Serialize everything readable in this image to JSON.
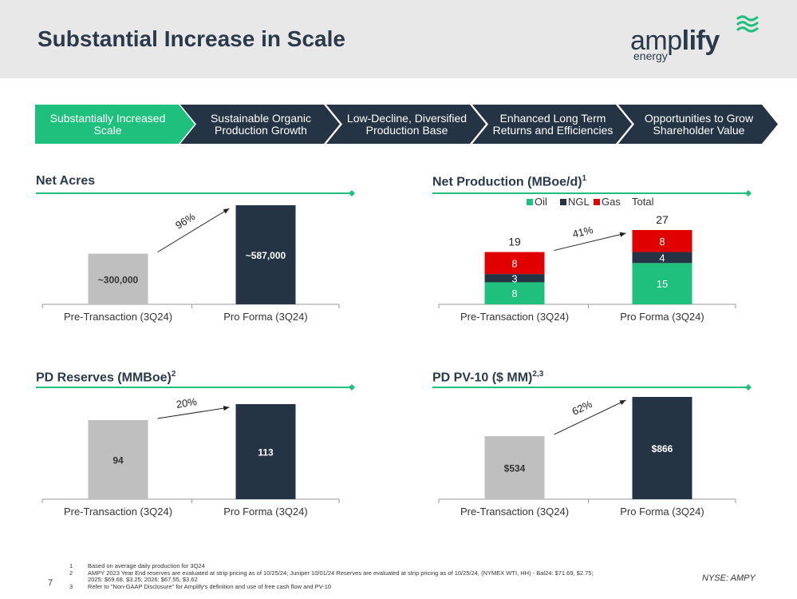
{
  "page": {
    "title": "Substantial Increase in Scale",
    "page_number": "7",
    "ticker": "NYSE: AMPY"
  },
  "logo": {
    "text_thin": "amp",
    "text_bold": "lify",
    "sub": "energy"
  },
  "colors": {
    "green": "#1fbf7e",
    "navy": "#243444",
    "gray": "#bfbfbf",
    "red": "#e00000",
    "line_green": "#1fbf7e"
  },
  "chevrons": [
    {
      "label": "Substantially Increased Scale",
      "active": true
    },
    {
      "label": "Sustainable Organic Production Growth",
      "active": false
    },
    {
      "label": "Low-Decline, Diversified Production Base",
      "active": false
    },
    {
      "label": "Enhanced Long Term Returns and Efficiencies",
      "active": false
    },
    {
      "label": "Opportunities to Grow Shareholder Value",
      "active": false
    }
  ],
  "sections": {
    "net_acres": {
      "title": "Net Acres",
      "sup": ""
    },
    "net_production": {
      "title": "Net Production (MBoe/d)",
      "sup": "1"
    },
    "pd_reserves": {
      "title": "PD Reserves (MMBoe)",
      "sup": "2"
    },
    "pd_pv10": {
      "title": "PD PV-10 ($ MM)",
      "sup": "2,3"
    }
  },
  "chart_data": [
    {
      "id": "net_acres",
      "type": "bar",
      "categories": [
        "Pre-Transaction (3Q24)",
        "Pro Forma (3Q24)"
      ],
      "values": [
        300000,
        587000
      ],
      "data_labels": [
        "~300,000",
        "~587,000"
      ],
      "growth_label": "96%",
      "title": "Net Acres",
      "xlabel": "",
      "ylabel": "",
      "ylim": [
        0,
        600000
      ]
    },
    {
      "id": "net_production",
      "type": "bar",
      "stacked": true,
      "categories": [
        "Pre-Transaction (3Q24)",
        "Pro Forma (3Q24)"
      ],
      "series": [
        {
          "name": "Oil",
          "values": [
            8,
            15
          ]
        },
        {
          "name": "NGL",
          "values": [
            3,
            4
          ]
        },
        {
          "name": "Gas",
          "values": [
            8,
            8
          ]
        }
      ],
      "totals": [
        19,
        27
      ],
      "total_label": "Total",
      "growth_label": "41%",
      "title": "Net Production (MBoe/d)",
      "xlabel": "",
      "ylabel": "",
      "ylim": [
        0,
        40
      ],
      "legend": "top"
    },
    {
      "id": "pd_reserves",
      "type": "bar",
      "categories": [
        "Pre-Transaction (3Q24)",
        "Pro Forma (3Q24)"
      ],
      "values": [
        94,
        113
      ],
      "data_labels": [
        "94",
        "113"
      ],
      "growth_label": "20%",
      "title": "PD Reserves (MMBoe)",
      "xlabel": "",
      "ylabel": "",
      "ylim": [
        0,
        118
      ]
    },
    {
      "id": "pd_pv10",
      "type": "bar",
      "categories": [
        "Pre-Transaction (3Q24)",
        "Pro Forma (3Q24)"
      ],
      "values": [
        534,
        866
      ],
      "data_labels": [
        "$534",
        "$866"
      ],
      "growth_label": "62%",
      "title": "PD PV-10 ($ MM)",
      "xlabel": "",
      "ylabel": "",
      "ylim": [
        0,
        875
      ]
    }
  ],
  "footnotes": [
    {
      "num": "1",
      "text": "Based on average daily production for 3Q24"
    },
    {
      "num": "2",
      "text": "AMPY 2023 Year End reserves are evaluated at strip pricing as of 10/25/24; Juniper 10/01/24 Reserves are evaluated at strip pricing as of 10/25/24, (NYMEX WTI, HH) - Bal24: $71.69, $2.75;"
    },
    {
      "num": "",
      "text": "2025: $69.68, $3.25; 2026: $67.55, $3.62"
    },
    {
      "num": "3",
      "text": "Refer to \"Non-GAAP Disclosure\" for Amplify's definition and use of free cash flow and PV-10"
    }
  ]
}
